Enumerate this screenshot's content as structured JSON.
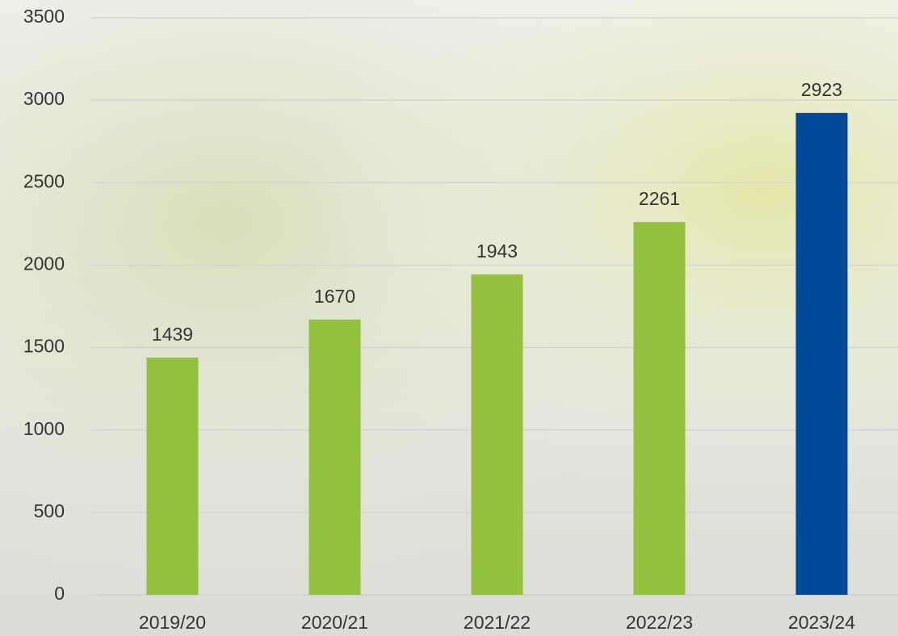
{
  "chart_data": {
    "type": "bar",
    "categories": [
      "2019/20",
      "2020/21",
      "2021/22",
      "2022/23",
      "2023/24"
    ],
    "values": [
      1439,
      1670,
      1943,
      2261,
      2923
    ],
    "colors": [
      "#92c13e",
      "#92c13e",
      "#92c13e",
      "#92c13e",
      "#004a98"
    ],
    "ylim": [
      0,
      3500
    ],
    "yticks": [
      0,
      500,
      1000,
      1500,
      2000,
      2500,
      3000,
      3500
    ],
    "grid": true
  }
}
